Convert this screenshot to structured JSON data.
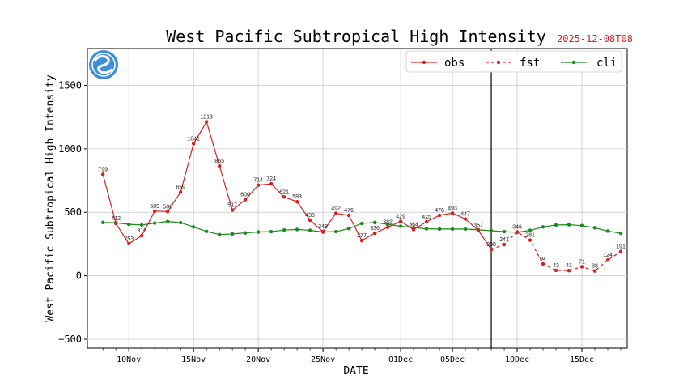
{
  "title": "West Pacific Subtropical High Intensity",
  "date_stamp": "2025-12-08T08",
  "colors": {
    "obs": "#d62020",
    "fst": "#d62020",
    "cli": "#1a8a1a",
    "grid": "#c8c8c8",
    "date_stamp": "#d62020"
  },
  "logo": {
    "name": "weather-logo"
  },
  "chart_data": {
    "type": "line",
    "title": "West Pacific Subtropical High Intensity",
    "xlabel": "DATE",
    "ylabel": "West Pacific Subtropical High Intensity",
    "ylim": [
      -570,
      1790
    ],
    "yticks": [
      -500,
      0,
      500,
      1000,
      1500
    ],
    "ytick_labels": [
      "−500",
      "0",
      "500",
      "1000",
      "1500"
    ],
    "xlim": [
      -1.2,
      40.5
    ],
    "xticks": [
      {
        "day": 2,
        "label": "10Nov"
      },
      {
        "day": 7,
        "label": "15Nov"
      },
      {
        "day": 12,
        "label": "20Nov"
      },
      {
        "day": 17,
        "label": "25Nov"
      },
      {
        "day": 23,
        "label": "01Dec"
      },
      {
        "day": 27,
        "label": "05Dec"
      },
      {
        "day": 32,
        "label": "10Dec"
      },
      {
        "day": 37,
        "label": "15Dec"
      }
    ],
    "grid": true,
    "legend_position": "top-right",
    "current_day": 30,
    "series": [
      {
        "name": "obs",
        "style": "solid",
        "x": [
          0,
          1,
          2,
          3,
          4,
          5,
          6,
          7,
          8,
          9,
          10,
          11,
          12,
          13,
          14,
          15,
          16,
          17,
          18,
          19,
          20,
          21,
          22,
          23,
          24,
          25,
          26,
          27,
          28,
          29,
          30
        ],
        "values": [
          799,
          412,
          253,
          316,
          509,
          506,
          659,
          1041,
          1213,
          865,
          517,
          600,
          714,
          724,
          621,
          583,
          438,
          348,
          492,
          476,
          277,
          336,
          382,
          429,
          364,
          425,
          476,
          493,
          447,
          357,
          208
        ]
      },
      {
        "name": "fst",
        "style": "dashed",
        "x": [
          30,
          31,
          32,
          33,
          34,
          35,
          36,
          37,
          38,
          39,
          40
        ],
        "values": [
          208,
          247,
          346,
          281,
          94,
          43,
          41,
          71,
          38,
          124,
          191
        ]
      },
      {
        "name": "cli",
        "style": "solid",
        "x": [
          0,
          1,
          2,
          3,
          4,
          5,
          6,
          7,
          8,
          9,
          10,
          11,
          12,
          13,
          14,
          15,
          16,
          17,
          18,
          19,
          20,
          21,
          22,
          23,
          24,
          25,
          26,
          27,
          28,
          29,
          30,
          31,
          32,
          33,
          34,
          35,
          36,
          37,
          38,
          39,
          40
        ],
        "values": [
          420,
          418,
          405,
          400,
          415,
          428,
          418,
          385,
          350,
          325,
          330,
          338,
          345,
          348,
          360,
          365,
          358,
          345,
          348,
          372,
          412,
          420,
          405,
          390,
          380,
          370,
          368,
          368,
          368,
          362,
          355,
          348,
          342,
          358,
          385,
          400,
          402,
          395,
          378,
          352,
          335
        ]
      }
    ]
  }
}
